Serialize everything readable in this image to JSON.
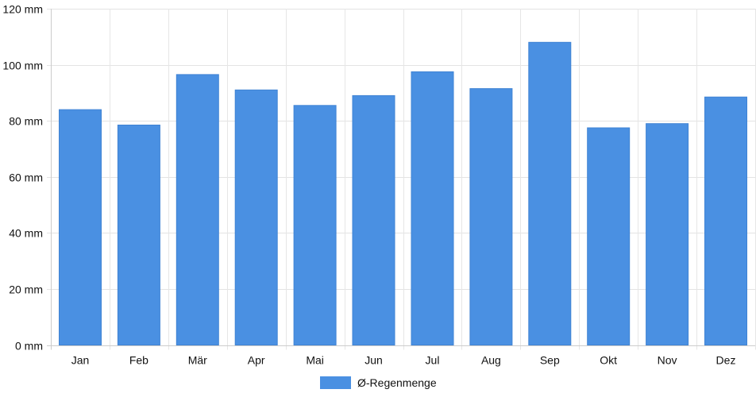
{
  "chart_data": {
    "type": "bar",
    "categories": [
      "Jan",
      "Feb",
      "Mär",
      "Apr",
      "Mai",
      "Jun",
      "Jul",
      "Aug",
      "Sep",
      "Okt",
      "Nov",
      "Dez"
    ],
    "series": [
      {
        "name": "Ø-Regenmenge",
        "color": "#4a90e2",
        "values": [
          84,
          78.5,
          96.5,
          91,
          85.5,
          89,
          97.5,
          91.5,
          108,
          77.5,
          79,
          88.5
        ]
      }
    ],
    "ylim": [
      0,
      120
    ],
    "yticks": [
      0,
      20,
      40,
      60,
      80,
      100,
      120
    ],
    "y_unit": "mm",
    "y_tick_labels": [
      "0 mm",
      "20 mm",
      "40 mm",
      "60 mm",
      "80 mm",
      "100 mm",
      "120 mm"
    ],
    "grid": true,
    "legend_position": "bottom-center"
  }
}
